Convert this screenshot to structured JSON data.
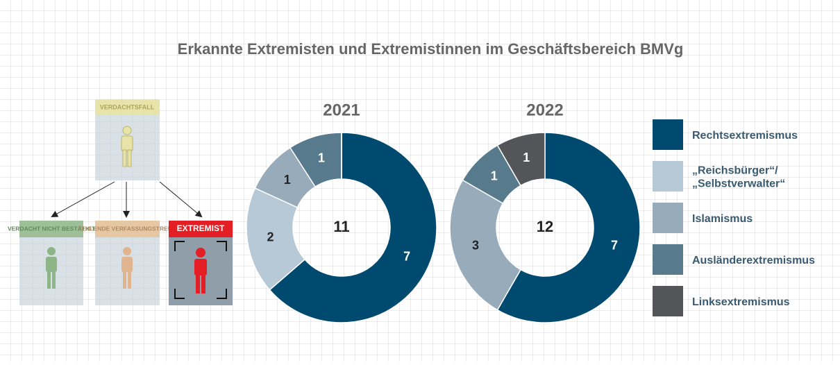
{
  "title": "Erkannte Extremisten und Extremistinnen im Geschäftsbereich BMVg",
  "flow": {
    "top": "VERDACHTSFALL",
    "outcomes": [
      "VERDACHT NICHT BESTÄTIGT",
      "FEHLENDE VERFASSUNGSTREUE",
      "EXTREMIST"
    ]
  },
  "chart_data": [
    {
      "type": "pie",
      "title": "2021",
      "total": 11,
      "categories": [
        "Rechtsextremismus",
        "„Reichsbürger“/ „Selbstverwalter“",
        "Islamismus",
        "Ausländerextremismus",
        "Linksextremismus"
      ],
      "values": [
        7,
        2,
        1,
        1,
        0
      ],
      "colors": [
        "#004a70",
        "#b7c9d6",
        "#97abbb",
        "#577a8c",
        "#545558"
      ]
    },
    {
      "type": "pie",
      "title": "2022",
      "total": 12,
      "categories": [
        "Rechtsextremismus",
        "„Reichsbürger“/ „Selbstverwalter“",
        "Islamismus",
        "Ausländerextremismus",
        "Linksextremismus"
      ],
      "values": [
        7,
        0,
        3,
        1,
        1
      ],
      "colors": [
        "#004a70",
        "#b7c9d6",
        "#97abbb",
        "#577a8c",
        "#545558"
      ]
    }
  ]
}
